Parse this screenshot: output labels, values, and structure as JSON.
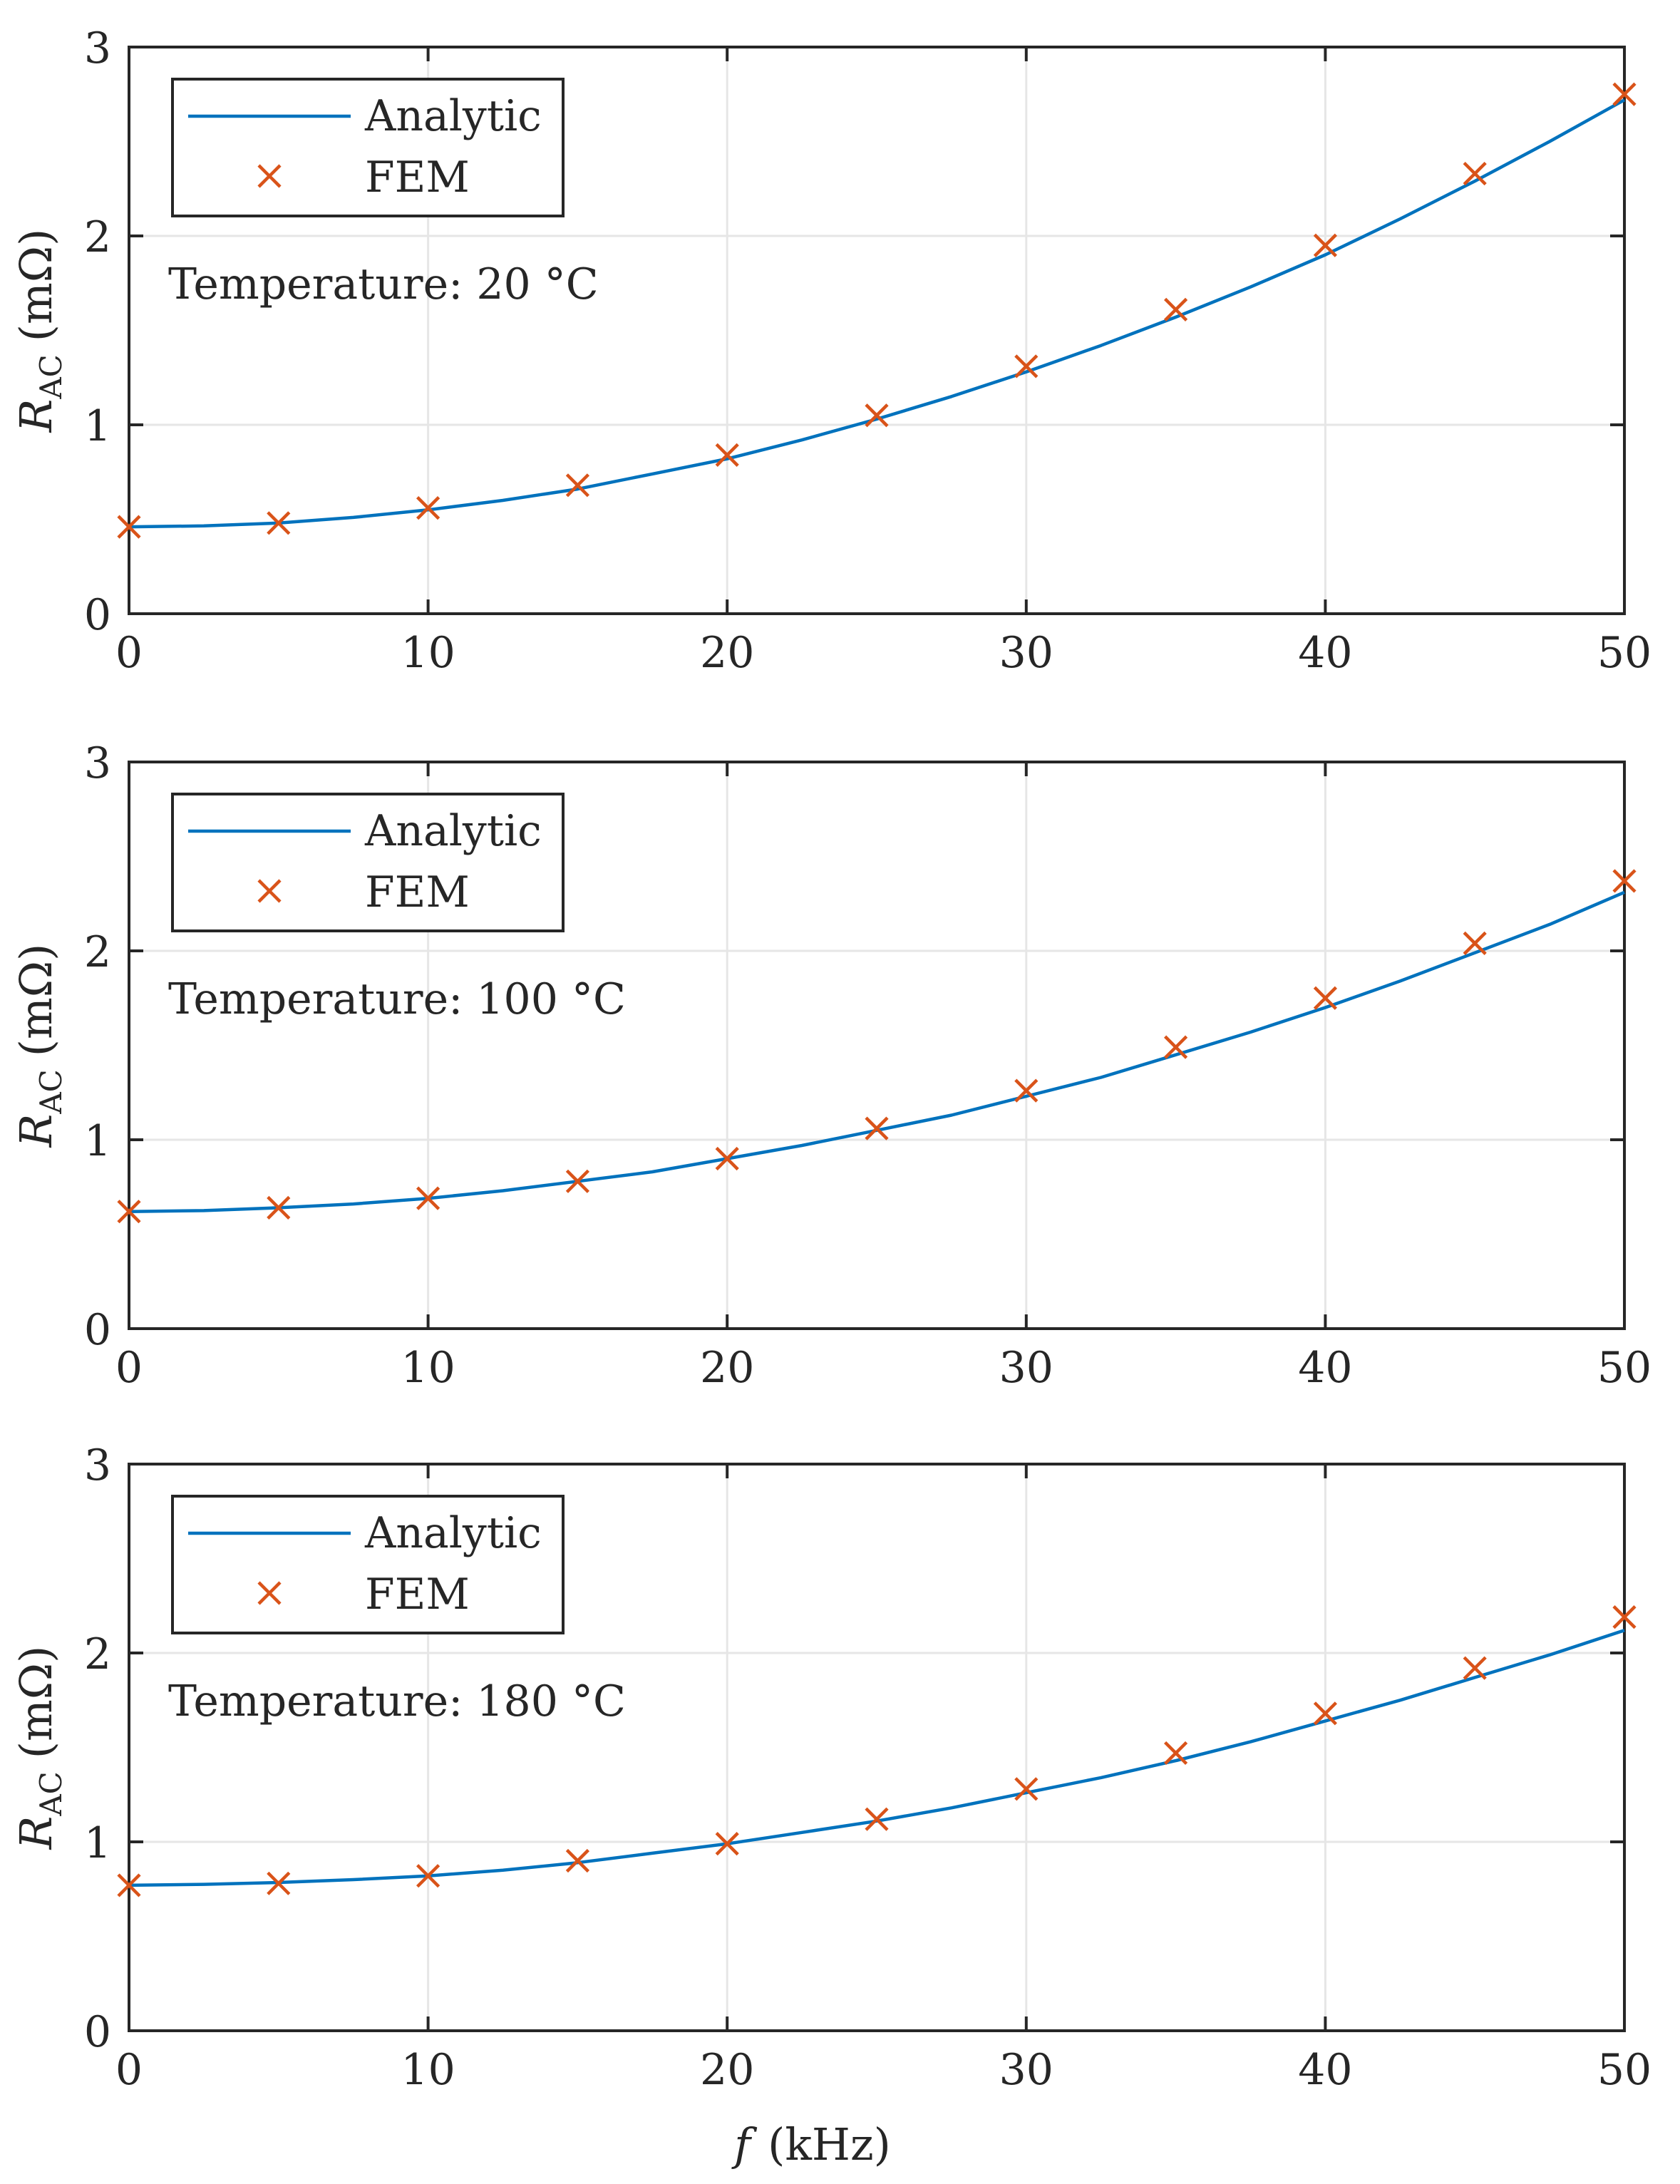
{
  "colors": {
    "analytic": "#0072BD",
    "fem": "#D95319",
    "axis": "#262626",
    "grid": "#e6e6e6",
    "background": "#ffffff"
  },
  "xlabel": {
    "var": "f",
    "unit": "(kHz)"
  },
  "chart_data": [
    {
      "type": "line",
      "title": "",
      "annotation": "Temperature:  20 °C",
      "ylabel": {
        "main": "R",
        "sub": "AC",
        "unit": "(mΩ)"
      },
      "xlim": [
        0,
        50
      ],
      "ylim": [
        0,
        3
      ],
      "xticks": [
        0,
        10,
        20,
        30,
        40,
        50
      ],
      "yticks": [
        0,
        1,
        2,
        3
      ],
      "grid": true,
      "legend_position": "top-left",
      "series": [
        {
          "name": "Analytic",
          "style": "line",
          "x": [
            0,
            2.5,
            5,
            7.5,
            10,
            12.5,
            15,
            17.5,
            20,
            22.5,
            25,
            27.5,
            30,
            32.5,
            35,
            37.5,
            40,
            42.5,
            45,
            47.5,
            50
          ],
          "values": [
            0.46,
            0.465,
            0.48,
            0.51,
            0.55,
            0.6,
            0.66,
            0.74,
            0.82,
            0.92,
            1.03,
            1.15,
            1.28,
            1.42,
            1.57,
            1.73,
            1.9,
            2.09,
            2.29,
            2.5,
            2.72
          ]
        },
        {
          "name": "FEM",
          "style": "marker-x",
          "x": [
            0,
            5,
            10,
            15,
            20,
            25,
            30,
            35,
            40,
            45,
            50
          ],
          "values": [
            0.46,
            0.48,
            0.56,
            0.68,
            0.84,
            1.05,
            1.31,
            1.61,
            1.95,
            2.33,
            2.75
          ]
        }
      ]
    },
    {
      "type": "line",
      "title": "",
      "annotation": "Temperature:  100 °C",
      "ylabel": {
        "main": "R",
        "sub": "AC",
        "unit": "(mΩ)"
      },
      "xlim": [
        0,
        50
      ],
      "ylim": [
        0,
        3
      ],
      "xticks": [
        0,
        10,
        20,
        30,
        40,
        50
      ],
      "yticks": [
        0,
        1,
        2,
        3
      ],
      "grid": true,
      "legend_position": "top-left",
      "series": [
        {
          "name": "Analytic",
          "style": "line",
          "x": [
            0,
            2.5,
            5,
            7.5,
            10,
            12.5,
            15,
            17.5,
            20,
            22.5,
            25,
            27.5,
            30,
            32.5,
            35,
            37.5,
            40,
            42.5,
            45,
            47.5,
            50
          ],
          "values": [
            0.62,
            0.625,
            0.64,
            0.66,
            0.69,
            0.73,
            0.78,
            0.83,
            0.9,
            0.97,
            1.05,
            1.13,
            1.23,
            1.33,
            1.45,
            1.57,
            1.7,
            1.84,
            1.99,
            2.14,
            2.31
          ]
        },
        {
          "name": "FEM",
          "style": "marker-x",
          "x": [
            0,
            5,
            10,
            15,
            20,
            25,
            30,
            35,
            40,
            45,
            50
          ],
          "values": [
            0.62,
            0.64,
            0.69,
            0.78,
            0.9,
            1.06,
            1.26,
            1.49,
            1.75,
            2.04,
            2.37
          ]
        }
      ]
    },
    {
      "type": "line",
      "title": "",
      "annotation": "Temperature:  180 °C",
      "ylabel": {
        "main": "R",
        "sub": "AC",
        "unit": "(mΩ)"
      },
      "xlim": [
        0,
        50
      ],
      "ylim": [
        0,
        3
      ],
      "xticks": [
        0,
        10,
        20,
        30,
        40,
        50
      ],
      "yticks": [
        0,
        1,
        2,
        3
      ],
      "grid": true,
      "legend_position": "top-left",
      "series": [
        {
          "name": "Analytic",
          "style": "line",
          "x": [
            0,
            2.5,
            5,
            7.5,
            10,
            12.5,
            15,
            17.5,
            20,
            22.5,
            25,
            27.5,
            30,
            32.5,
            35,
            37.5,
            40,
            42.5,
            45,
            47.5,
            50
          ],
          "values": [
            0.77,
            0.775,
            0.785,
            0.8,
            0.82,
            0.85,
            0.89,
            0.94,
            0.99,
            1.05,
            1.11,
            1.18,
            1.26,
            1.34,
            1.43,
            1.53,
            1.64,
            1.75,
            1.87,
            1.99,
            2.12
          ]
        },
        {
          "name": "FEM",
          "style": "marker-x",
          "x": [
            0,
            5,
            10,
            15,
            20,
            25,
            30,
            35,
            40,
            45,
            50
          ],
          "values": [
            0.77,
            0.78,
            0.82,
            0.9,
            0.99,
            1.12,
            1.28,
            1.47,
            1.68,
            1.92,
            2.19
          ]
        }
      ]
    }
  ]
}
